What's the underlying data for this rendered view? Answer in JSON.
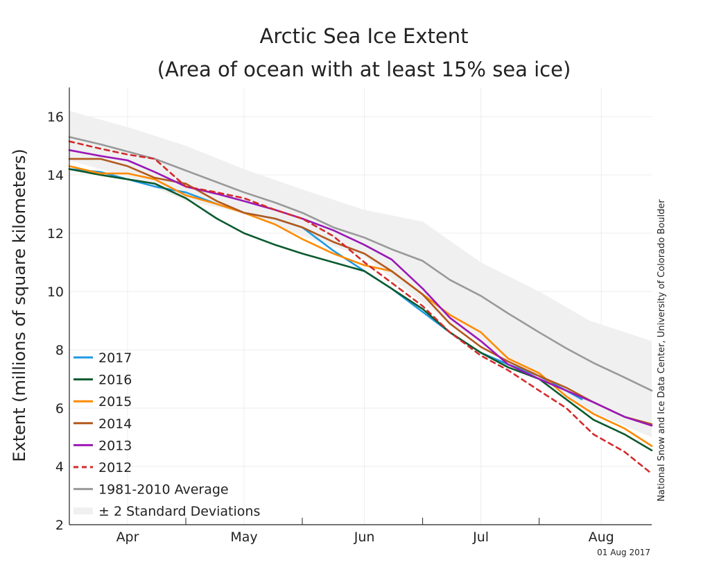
{
  "chart_data": {
    "type": "line",
    "title_lines": [
      "Arctic Sea Ice Extent",
      "(Area of ocean with at least 15% sea ice)"
    ],
    "ylabel": "Extent (millions of square kilometers)",
    "xlabel": "",
    "x_unit": "day of year",
    "xlim": [
      82,
      232
    ],
    "ylim": [
      2,
      17
    ],
    "yticks": [
      2,
      4,
      6,
      8,
      10,
      12,
      14,
      16
    ],
    "month_ticks": [
      {
        "label": "Apr",
        "day": 97
      },
      {
        "label": "May",
        "day": 127
      },
      {
        "label": "Jun",
        "day": 158
      },
      {
        "label": "Jul",
        "day": 188
      },
      {
        "label": "Aug",
        "day": 219
      }
    ],
    "month_boundaries": [
      112,
      142,
      173,
      203
    ],
    "grid": true,
    "legend_position": "bottom-left",
    "credit": "National Snow and Ice Data Center, University of Colorado Boulder",
    "date_label": "01 Aug 2017",
    "std_band": {
      "name": "± 2 Standard Deviations",
      "color": "#f0f0f0",
      "x": [
        82,
        98,
        112,
        127,
        142,
        158,
        173,
        188,
        203,
        216,
        232
      ],
      "upper": [
        16.2,
        15.6,
        15.0,
        14.2,
        13.5,
        12.8,
        12.4,
        11.0,
        10.0,
        9.0,
        8.3
      ],
      "lower": [
        14.5,
        13.9,
        13.1,
        12.7,
        11.9,
        11.2,
        9.6,
        8.2,
        7.0,
        5.9,
        5.0
      ]
    },
    "series": [
      {
        "name": "2017",
        "color": "#1f9ae0",
        "dashed": false,
        "x": [
          82,
          90,
          97,
          104,
          112,
          120,
          127,
          135,
          142,
          150,
          158,
          165,
          173,
          180,
          188,
          195,
          203,
          210,
          214
        ],
        "y": [
          14.2,
          14.1,
          13.85,
          13.6,
          13.4,
          13.0,
          12.7,
          12.5,
          12.2,
          11.4,
          10.7,
          10.1,
          9.3,
          8.6,
          7.9,
          7.5,
          7.1,
          6.6,
          6.3
        ]
      },
      {
        "name": "2016",
        "color": "#0b5a2f",
        "dashed": false,
        "x": [
          82,
          90,
          97,
          104,
          112,
          120,
          127,
          135,
          142,
          150,
          158,
          165,
          173,
          180,
          188,
          195,
          203,
          210,
          217,
          225,
          232
        ],
        "y": [
          14.2,
          14.0,
          13.85,
          13.7,
          13.2,
          12.5,
          12.0,
          11.6,
          11.3,
          11.0,
          10.7,
          10.1,
          9.4,
          8.6,
          7.9,
          7.4,
          7.0,
          6.3,
          5.6,
          5.1,
          4.55
        ]
      },
      {
        "name": "2015",
        "color": "#ff8a00",
        "dashed": false,
        "x": [
          82,
          90,
          97,
          104,
          112,
          120,
          127,
          135,
          142,
          150,
          158,
          165,
          173,
          180,
          188,
          195,
          203,
          210,
          217,
          225,
          232
        ],
        "y": [
          14.3,
          14.05,
          14.05,
          13.85,
          13.3,
          13.0,
          12.7,
          12.3,
          11.8,
          11.3,
          10.9,
          10.7,
          9.9,
          9.2,
          8.6,
          7.7,
          7.2,
          6.4,
          5.8,
          5.3,
          4.7
        ]
      },
      {
        "name": "2014",
        "color": "#b25a1e",
        "dashed": false,
        "x": [
          82,
          90,
          97,
          104,
          112,
          120,
          127,
          135,
          142,
          150,
          158,
          165,
          173,
          180,
          188,
          195,
          203,
          210,
          217,
          225,
          232
        ],
        "y": [
          14.55,
          14.55,
          14.3,
          13.9,
          13.7,
          13.1,
          12.7,
          12.5,
          12.2,
          11.7,
          11.3,
          10.7,
          9.9,
          8.9,
          8.1,
          7.6,
          7.1,
          6.7,
          6.2,
          5.7,
          5.45
        ]
      },
      {
        "name": "2013",
        "color": "#9a17b5",
        "dashed": false,
        "x": [
          82,
          90,
          97,
          104,
          112,
          120,
          127,
          135,
          142,
          150,
          158,
          165,
          173,
          180,
          188,
          195,
          203,
          210,
          217,
          225,
          232
        ],
        "y": [
          14.85,
          14.65,
          14.5,
          14.1,
          13.6,
          13.35,
          13.1,
          12.8,
          12.5,
          12.1,
          11.6,
          11.1,
          10.1,
          9.1,
          8.3,
          7.5,
          7.0,
          6.6,
          6.2,
          5.7,
          5.4
        ]
      },
      {
        "name": "2012",
        "color": "#d22b2b",
        "dashed": true,
        "x": [
          82,
          90,
          97,
          104,
          112,
          120,
          127,
          135,
          142,
          150,
          158,
          165,
          173,
          180,
          188,
          195,
          203,
          210,
          217,
          225,
          232
        ],
        "y": [
          15.15,
          14.9,
          14.7,
          14.55,
          13.6,
          13.4,
          13.2,
          12.8,
          12.5,
          11.9,
          11.0,
          10.3,
          9.5,
          8.6,
          7.8,
          7.3,
          6.6,
          6.0,
          5.1,
          4.5,
          3.75
        ]
      },
      {
        "name": "1981-2010 Average",
        "color": "#999999",
        "dashed": false,
        "x": [
          82,
          90,
          97,
          104,
          112,
          120,
          127,
          135,
          142,
          150,
          158,
          165,
          173,
          180,
          188,
          195,
          203,
          210,
          217,
          225,
          232
        ],
        "y": [
          15.3,
          15.05,
          14.8,
          14.55,
          14.15,
          13.75,
          13.4,
          13.05,
          12.7,
          12.2,
          11.85,
          11.45,
          11.05,
          10.4,
          9.85,
          9.25,
          8.6,
          8.05,
          7.55,
          7.05,
          6.6
        ]
      }
    ]
  }
}
